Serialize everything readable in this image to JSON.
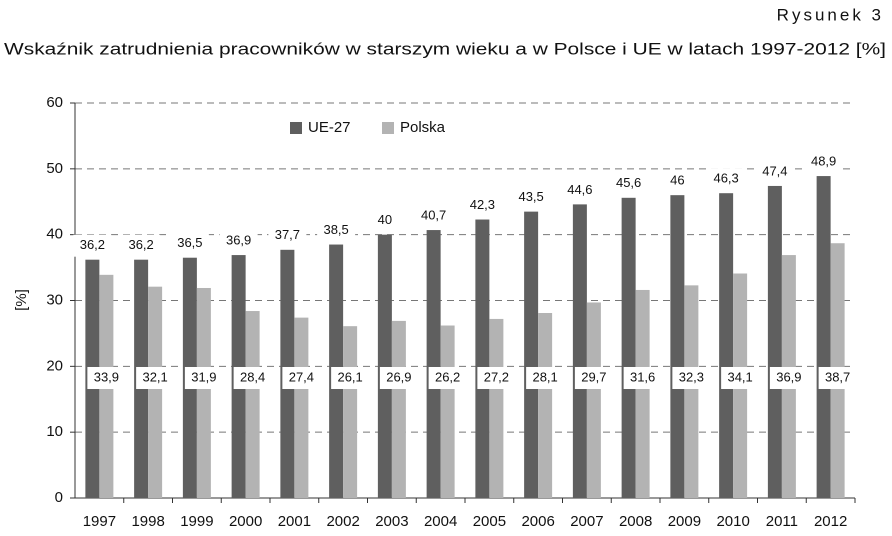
{
  "chart_data": {
    "type": "bar",
    "figure_label": "Rysunek 3",
    "title": "Wskaźnik zatrudnienia pracowników w starszym wieku a w Polsce i UE w latach 1997-2012 [%]",
    "y_label": "[%]",
    "categories": [
      "1997",
      "1998",
      "1999",
      "2000",
      "2001",
      "2002",
      "2003",
      "2004",
      "2005",
      "2006",
      "2007",
      "2008",
      "2009",
      "2010",
      "2011",
      "2012"
    ],
    "series": [
      {
        "name": "UE-27",
        "color": "#5f5f5f",
        "values": [
          36.2,
          36.2,
          36.5,
          36.9,
          37.7,
          38.5,
          40,
          40.7,
          42.3,
          43.5,
          44.6,
          45.6,
          46,
          46.3,
          47.4,
          48.9
        ],
        "value_labels": [
          "36,2",
          "36,2",
          "36,5",
          "36,9",
          "37,7",
          "38,5",
          "40",
          "40,7",
          "42,3",
          "43,5",
          "44,6",
          "45,6",
          "46",
          "46,3",
          "47,4",
          "48,9"
        ]
      },
      {
        "name": "Polska",
        "color": "#b3b3b3",
        "values": [
          33.9,
          32.1,
          31.9,
          28.4,
          27.4,
          26.1,
          26.9,
          26.2,
          27.2,
          28.1,
          29.7,
          31.6,
          32.3,
          34.1,
          36.9,
          38.7
        ],
        "value_labels": [
          "33,9",
          "32,1",
          "31,9",
          "28,4",
          "27,4",
          "26,1",
          "26,9",
          "26,2",
          "27,2",
          "28,1",
          "29,7",
          "31,6",
          "32,3",
          "34,1",
          "36,9",
          "38,7"
        ]
      }
    ],
    "ylim": [
      0,
      60
    ],
    "yticks": [
      0,
      10,
      20,
      30,
      40,
      50,
      60
    ],
    "grid": true,
    "legend": "top"
  }
}
